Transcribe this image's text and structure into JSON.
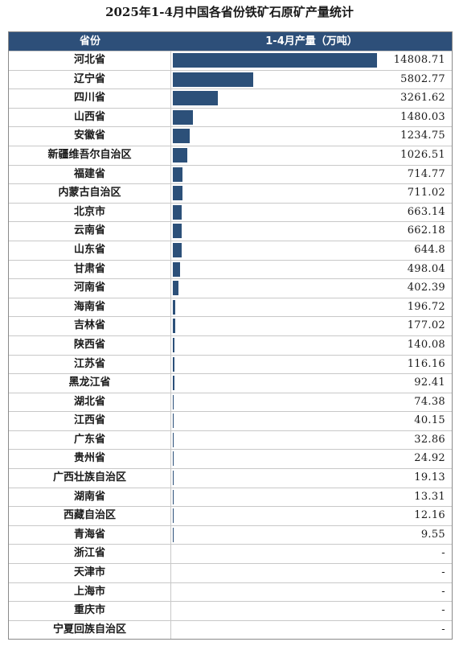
{
  "title": "2025年1-4月中国各省份铁矿石原矿产量统计",
  "header": {
    "col1": "省份",
    "col2": "1-4月产量（万吨）"
  },
  "colors": {
    "bar": "#2c5079",
    "header_bg": "#2d4f79"
  },
  "chart_data": {
    "type": "bar",
    "title": "2025年1-4月中国各省份铁矿石原矿产量统计",
    "xlabel": "省份",
    "ylabel": "1-4月产量（万吨）",
    "rows": [
      {
        "province": "河北省",
        "value": 14808.71,
        "label": "14808.71"
      },
      {
        "province": "辽宁省",
        "value": 5802.77,
        "label": "5802.77"
      },
      {
        "province": "四川省",
        "value": 3261.62,
        "label": "3261.62"
      },
      {
        "province": "山西省",
        "value": 1480.03,
        "label": "1480.03"
      },
      {
        "province": "安徽省",
        "value": 1234.75,
        "label": "1234.75"
      },
      {
        "province": "新疆维吾尔自治区",
        "value": 1026.51,
        "label": "1026.51"
      },
      {
        "province": "福建省",
        "value": 714.77,
        "label": "714.77"
      },
      {
        "province": "内蒙古自治区",
        "value": 711.02,
        "label": "711.02"
      },
      {
        "province": "北京市",
        "value": 663.14,
        "label": "663.14"
      },
      {
        "province": "云南省",
        "value": 662.18,
        "label": "662.18"
      },
      {
        "province": "山东省",
        "value": 644.8,
        "label": "644.8"
      },
      {
        "province": "甘肃省",
        "value": 498.04,
        "label": "498.04"
      },
      {
        "province": "河南省",
        "value": 402.39,
        "label": "402.39"
      },
      {
        "province": "海南省",
        "value": 196.72,
        "label": "196.72"
      },
      {
        "province": "吉林省",
        "value": 177.02,
        "label": "177.02"
      },
      {
        "province": "陕西省",
        "value": 140.08,
        "label": "140.08"
      },
      {
        "province": "江苏省",
        "value": 116.16,
        "label": "116.16"
      },
      {
        "province": "黑龙江省",
        "value": 92.41,
        "label": "92.41"
      },
      {
        "province": "湖北省",
        "value": 74.38,
        "label": "74.38"
      },
      {
        "province": "江西省",
        "value": 40.15,
        "label": "40.15"
      },
      {
        "province": "广东省",
        "value": 32.86,
        "label": "32.86"
      },
      {
        "province": "贵州省",
        "value": 24.92,
        "label": "24.92"
      },
      {
        "province": "广西壮族自治区",
        "value": 19.13,
        "label": "19.13"
      },
      {
        "province": "湖南省",
        "value": 13.31,
        "label": "13.31"
      },
      {
        "province": "西藏自治区",
        "value": 12.16,
        "label": "12.16"
      },
      {
        "province": "青海省",
        "value": 9.55,
        "label": "9.55"
      },
      {
        "province": "浙江省",
        "value": null,
        "label": "-"
      },
      {
        "province": "天津市",
        "value": null,
        "label": "-"
      },
      {
        "province": "上海市",
        "value": null,
        "label": "-"
      },
      {
        "province": "重庆市",
        "value": null,
        "label": "-"
      },
      {
        "province": "宁夏回族自治区",
        "value": null,
        "label": "-"
      }
    ],
    "ylim": [
      0,
      14808.71
    ]
  }
}
